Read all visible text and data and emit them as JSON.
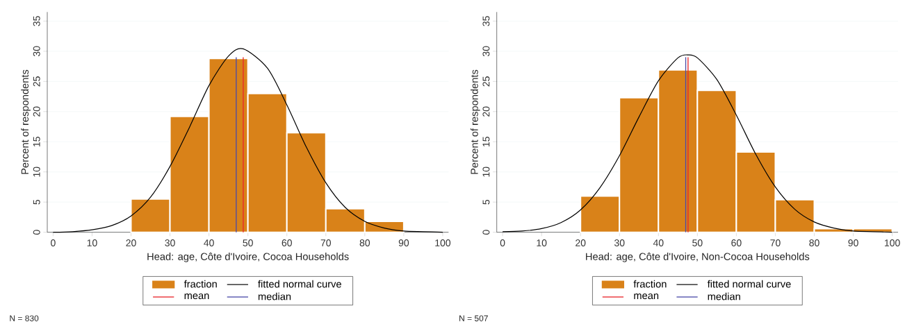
{
  "chart_data": [
    {
      "type": "histogram",
      "xlabel": "Head: age, Côte d'Ivoire, Cocoa Households",
      "ylabel": "Percent of respondents",
      "bins": [
        20,
        30,
        40,
        50,
        60,
        70,
        80,
        90
      ],
      "xlim": [
        -1.5,
        101.5
      ],
      "xticks": [
        0,
        10,
        20,
        30,
        40,
        50,
        60,
        70,
        80,
        90,
        100
      ],
      "ylim": [
        0,
        36.5
      ],
      "yticks": [
        0,
        5,
        10,
        15,
        20,
        25,
        30,
        35
      ],
      "grid": "y",
      "legend": "bottom",
      "series": [
        {
          "name": "fraction",
          "color": "#d98219",
          "values": [
            5.5,
            19.2,
            28.8,
            23.0,
            16.5,
            3.9,
            1.8
          ]
        },
        {
          "name": "fitted normal curve",
          "type": "line",
          "color": "#000000",
          "x": [
            0,
            5,
            10,
            15,
            20,
            25,
            30,
            35,
            40,
            45,
            48.8,
            55,
            60,
            65,
            70,
            75,
            80,
            85,
            90,
            95,
            100
          ],
          "values": [
            0,
            0.1,
            0.4,
            1.1,
            2.7,
            5.8,
            10.9,
            17.4,
            24.3,
            29.2,
            30.4,
            27.2,
            21.1,
            14.1,
            8.2,
            4.1,
            1.8,
            0.7,
            0.2,
            0.1,
            0
          ]
        }
      ],
      "ref_lines": [
        {
          "axis": "x",
          "value": 48.8,
          "label": "mean",
          "color": "#e8262b"
        },
        {
          "axis": "x",
          "value": 47,
          "label": "median",
          "color": "#4a4aa8"
        }
      ],
      "annotations": [
        "N = 830"
      ]
    },
    {
      "type": "histogram",
      "xlabel": "Head: age, Côte d'Ivoire, Non-Cocoa Households",
      "ylabel": "Percent of respondents",
      "bins": [
        20,
        30,
        40,
        50,
        60,
        70,
        80,
        90,
        100
      ],
      "xlim": [
        -1.5,
        101.5
      ],
      "xticks": [
        0,
        10,
        20,
        30,
        40,
        50,
        60,
        70,
        80,
        90,
        100
      ],
      "ylim": [
        0,
        36.5
      ],
      "yticks": [
        0,
        5,
        10,
        15,
        20,
        25,
        30,
        35
      ],
      "grid": "y",
      "legend": "bottom",
      "series": [
        {
          "name": "fraction",
          "color": "#d98219",
          "values": [
            6.0,
            22.3,
            26.9,
            23.5,
            13.3,
            5.4,
            0.6,
            0.6
          ]
        },
        {
          "name": "fitted normal curve",
          "type": "line",
          "color": "#000000",
          "x": [
            0,
            5,
            10,
            15,
            20,
            25,
            30,
            35,
            40,
            45,
            47.6,
            50,
            55,
            60,
            65,
            70,
            75,
            80,
            85,
            90,
            95,
            100
          ],
          "values": [
            0.1,
            0.2,
            0.6,
            1.6,
            3.7,
            7.4,
            12.7,
            19.1,
            25.1,
            28.9,
            29.4,
            28.9,
            25.3,
            19.4,
            12.9,
            7.5,
            3.8,
            1.7,
            0.7,
            0.2,
            0.1,
            0
          ]
        }
      ],
      "ref_lines": [
        {
          "axis": "x",
          "value": 47.6,
          "label": "mean",
          "color": "#e8262b"
        },
        {
          "axis": "x",
          "value": 47,
          "label": "median",
          "color": "#4a4aa8"
        }
      ],
      "annotations": [
        "N = 507"
      ]
    }
  ]
}
